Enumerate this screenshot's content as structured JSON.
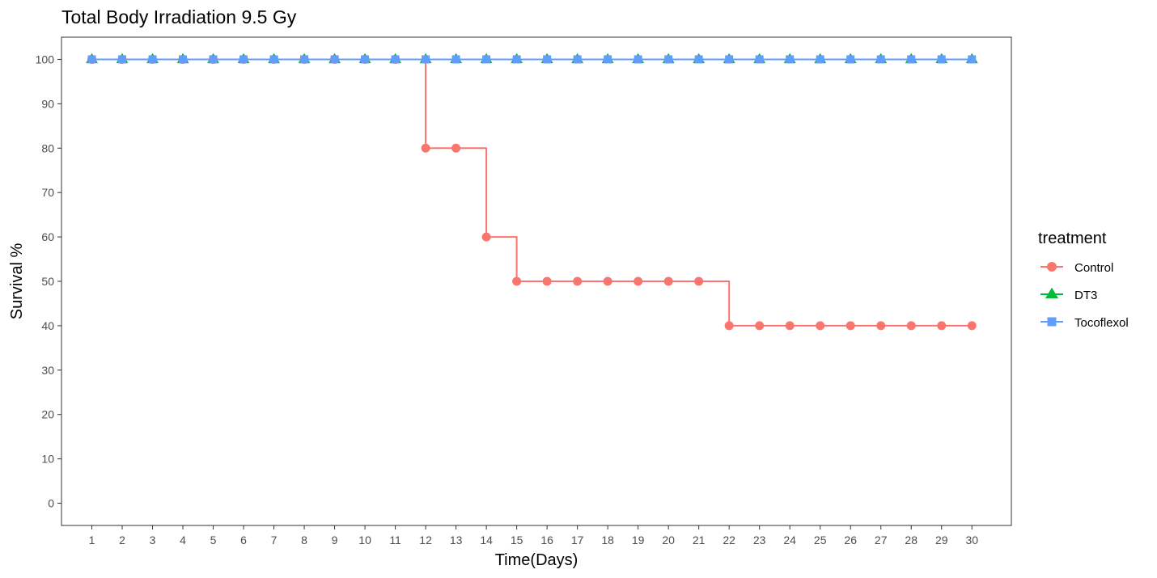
{
  "chart_data": {
    "type": "line",
    "title": "Total Body Irradiation 9.5 Gy",
    "xlabel": "Time(Days)",
    "ylabel": "Survival %",
    "x": [
      1,
      2,
      3,
      4,
      5,
      6,
      7,
      8,
      9,
      10,
      11,
      12,
      13,
      14,
      15,
      16,
      17,
      18,
      19,
      20,
      21,
      22,
      23,
      24,
      25,
      26,
      27,
      28,
      29,
      30
    ],
    "xticks": [
      "1",
      "2",
      "3",
      "4",
      "5",
      "6",
      "7",
      "8",
      "9",
      "10",
      "11",
      "12",
      "13",
      "14",
      "15",
      "16",
      "17",
      "18",
      "19",
      "20",
      "21",
      "22",
      "23",
      "24",
      "25",
      "26",
      "27",
      "28",
      "29",
      "30"
    ],
    "yticks": [
      "0",
      "10",
      "20",
      "30",
      "40",
      "50",
      "60",
      "70",
      "80",
      "90",
      "100"
    ],
    "xlim": [
      0,
      31.3
    ],
    "ylim": [
      -5,
      105
    ],
    "grid": false,
    "step": true,
    "legend": {
      "title": "treatment",
      "position": "right"
    },
    "series": [
      {
        "name": "Control",
        "color": "#F8766D",
        "marker": "circle",
        "values": [
          100,
          100,
          100,
          100,
          100,
          100,
          100,
          100,
          100,
          100,
          100,
          80,
          80,
          60,
          50,
          50,
          50,
          50,
          50,
          50,
          50,
          40,
          40,
          40,
          40,
          40,
          40,
          40,
          40,
          40
        ]
      },
      {
        "name": "DT3",
        "color": "#00BA38",
        "marker": "triangle",
        "values": [
          100,
          100,
          100,
          100,
          100,
          100,
          100,
          100,
          100,
          100,
          100,
          100,
          100,
          100,
          100,
          100,
          100,
          100,
          100,
          100,
          100,
          100,
          100,
          100,
          100,
          100,
          100,
          100,
          100,
          100
        ]
      },
      {
        "name": "Tocoflexol",
        "color": "#619CFF",
        "marker": "square",
        "values": [
          100,
          100,
          100,
          100,
          100,
          100,
          100,
          100,
          100,
          100,
          100,
          100,
          100,
          100,
          100,
          100,
          100,
          100,
          100,
          100,
          100,
          100,
          100,
          100,
          100,
          100,
          100,
          100,
          100,
          100
        ]
      }
    ]
  }
}
